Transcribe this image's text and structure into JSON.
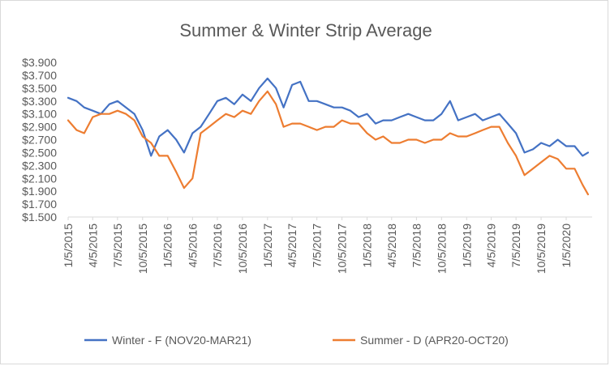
{
  "chart_data": {
    "type": "line",
    "title": "Summer & Winter Strip Average",
    "xlabel": "",
    "ylabel": "",
    "ylim": [
      1.5,
      3.9
    ],
    "y_ticks": [
      "$1.500",
      "$1.700",
      "$1.900",
      "$2.100",
      "$2.300",
      "$2.500",
      "$2.700",
      "$2.900",
      "$3.100",
      "$3.300",
      "$3.500",
      "$3.700",
      "$3.900"
    ],
    "x_ticks": [
      "1/5/2015",
      "4/5/2015",
      "7/5/2015",
      "10/5/2015",
      "1/5/2016",
      "4/5/2016",
      "7/5/2016",
      "10/5/2016",
      "1/5/2017",
      "4/5/2017",
      "7/5/2017",
      "10/5/2017",
      "1/5/2018",
      "4/5/2018",
      "7/5/2018",
      "10/5/2018",
      "1/5/2019",
      "4/5/2019",
      "7/5/2019",
      "10/5/2019",
      "1/5/2020"
    ],
    "grid": false,
    "legend_position": "bottom",
    "series": [
      {
        "name": "Winter - F (NOV20-MAR21)",
        "color": "#4472c4",
        "x": [
          "1/5/2015",
          "2/5/2015",
          "3/5/2015",
          "4/5/2015",
          "5/5/2015",
          "6/5/2015",
          "7/5/2015",
          "8/5/2015",
          "9/5/2015",
          "10/5/2015",
          "11/5/2015",
          "12/5/2015",
          "1/5/2016",
          "2/5/2016",
          "3/5/2016",
          "4/5/2016",
          "5/5/2016",
          "6/5/2016",
          "7/5/2016",
          "8/5/2016",
          "9/5/2016",
          "10/5/2016",
          "11/5/2016",
          "12/5/2016",
          "1/5/2017",
          "2/5/2017",
          "3/5/2017",
          "4/5/2017",
          "5/5/2017",
          "6/5/2017",
          "7/5/2017",
          "8/5/2017",
          "9/5/2017",
          "10/5/2017",
          "11/5/2017",
          "12/5/2017",
          "1/5/2018",
          "2/5/2018",
          "3/5/2018",
          "4/5/2018",
          "5/5/2018",
          "6/5/2018",
          "7/5/2018",
          "8/5/2018",
          "9/5/2018",
          "10/5/2018",
          "11/5/2018",
          "12/5/2018",
          "1/5/2019",
          "2/5/2019",
          "3/5/2019",
          "4/5/2019",
          "5/5/2019",
          "6/5/2019",
          "7/5/2019",
          "8/5/2019",
          "9/5/2019",
          "10/5/2019",
          "11/5/2019",
          "12/5/2019",
          "1/5/2020",
          "2/5/2020",
          "3/5/2020",
          "3/25/2020"
        ],
        "values": [
          3.35,
          3.3,
          3.2,
          3.15,
          3.1,
          3.25,
          3.3,
          3.2,
          3.1,
          2.85,
          2.45,
          2.75,
          2.85,
          2.7,
          2.5,
          2.8,
          2.9,
          3.1,
          3.3,
          3.35,
          3.25,
          3.4,
          3.3,
          3.5,
          3.65,
          3.5,
          3.2,
          3.55,
          3.6,
          3.3,
          3.3,
          3.25,
          3.2,
          3.2,
          3.15,
          3.05,
          3.1,
          2.95,
          3.0,
          3.0,
          3.05,
          3.1,
          3.05,
          3.0,
          3.0,
          3.1,
          3.3,
          3.0,
          3.05,
          3.1,
          3.0,
          3.05,
          3.1,
          2.95,
          2.8,
          2.5,
          2.55,
          2.65,
          2.6,
          2.7,
          2.6,
          2.6,
          2.45,
          2.5
        ]
      },
      {
        "name": "Summer - D (APR20-OCT20)",
        "color": "#ed7d31",
        "x": [
          "1/5/2015",
          "2/5/2015",
          "3/5/2015",
          "4/5/2015",
          "5/5/2015",
          "6/5/2015",
          "7/5/2015",
          "8/5/2015",
          "9/5/2015",
          "10/5/2015",
          "11/5/2015",
          "12/5/2015",
          "1/5/2016",
          "2/5/2016",
          "3/5/2016",
          "4/5/2016",
          "5/5/2016",
          "6/5/2016",
          "7/5/2016",
          "8/5/2016",
          "9/5/2016",
          "10/5/2016",
          "11/5/2016",
          "12/5/2016",
          "1/5/2017",
          "2/5/2017",
          "3/5/2017",
          "4/5/2017",
          "5/5/2017",
          "6/5/2017",
          "7/5/2017",
          "8/5/2017",
          "9/5/2017",
          "10/5/2017",
          "11/5/2017",
          "12/5/2017",
          "1/5/2018",
          "2/5/2018",
          "3/5/2018",
          "4/5/2018",
          "5/5/2018",
          "6/5/2018",
          "7/5/2018",
          "8/5/2018",
          "9/5/2018",
          "10/5/2018",
          "11/5/2018",
          "12/5/2018",
          "1/5/2019",
          "2/5/2019",
          "3/5/2019",
          "4/5/2019",
          "5/5/2019",
          "6/5/2019",
          "7/5/2019",
          "8/5/2019",
          "9/5/2019",
          "10/5/2019",
          "11/5/2019",
          "12/5/2019",
          "1/5/2020",
          "2/5/2020",
          "3/5/2020",
          "3/25/2020"
        ],
        "values": [
          3.0,
          2.85,
          2.8,
          3.05,
          3.1,
          3.1,
          3.15,
          3.1,
          3.0,
          2.75,
          2.65,
          2.45,
          2.45,
          2.2,
          1.95,
          2.1,
          2.8,
          2.9,
          3.0,
          3.1,
          3.05,
          3.15,
          3.1,
          3.3,
          3.45,
          3.25,
          2.9,
          2.95,
          2.95,
          2.9,
          2.85,
          2.9,
          2.9,
          3.0,
          2.95,
          2.95,
          2.8,
          2.7,
          2.75,
          2.65,
          2.65,
          2.7,
          2.7,
          2.65,
          2.7,
          2.7,
          2.8,
          2.75,
          2.75,
          2.8,
          2.85,
          2.9,
          2.9,
          2.65,
          2.45,
          2.15,
          2.25,
          2.35,
          2.45,
          2.4,
          2.25,
          2.25,
          2.0,
          1.85
        ]
      }
    ]
  }
}
